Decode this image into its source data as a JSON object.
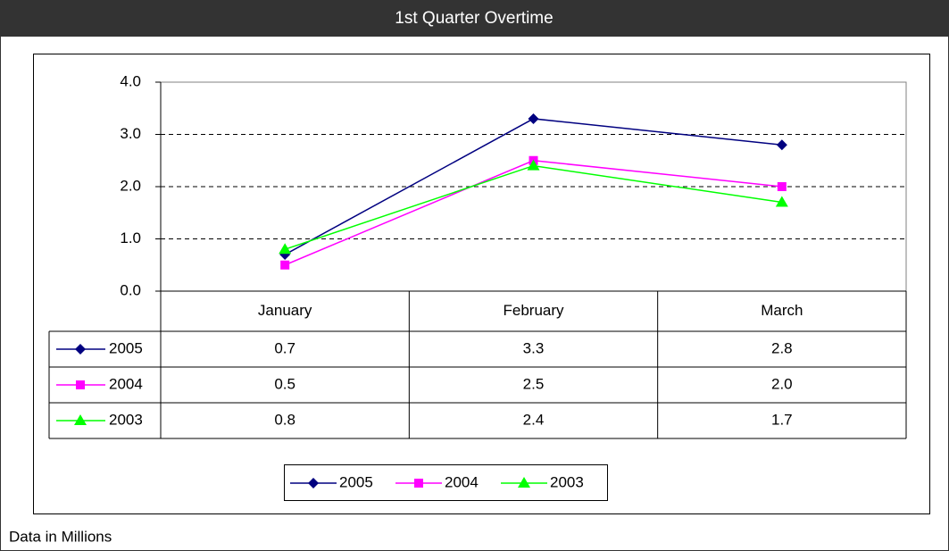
{
  "chart_data": {
    "type": "line",
    "title": "1st Quarter Overtime",
    "footnote": "Data in Millions",
    "categories": [
      "January",
      "February",
      "March"
    ],
    "series": [
      {
        "name": "2005",
        "color": "#000080",
        "marker": "diamond",
        "values": [
          0.7,
          3.3,
          2.8
        ],
        "value_labels": [
          "0.7",
          "3.3",
          "2.8"
        ]
      },
      {
        "name": "2004",
        "color": "#ff00ff",
        "marker": "square",
        "values": [
          0.5,
          2.5,
          2.0
        ],
        "value_labels": [
          "0.5",
          "2.5",
          "2.0"
        ]
      },
      {
        "name": "2003",
        "color": "#00ff00",
        "marker": "triangle",
        "values": [
          0.8,
          2.4,
          1.7
        ],
        "value_labels": [
          "0.8",
          "2.4",
          "1.7"
        ]
      }
    ],
    "ylim": [
      0,
      4
    ],
    "yticks": [
      {
        "value": 0,
        "label": "0.0"
      },
      {
        "value": 1,
        "label": "1.0"
      },
      {
        "value": 2,
        "label": "2.0"
      },
      {
        "value": 3,
        "label": "3.0"
      },
      {
        "value": 4,
        "label": "4.0"
      }
    ],
    "grid": true,
    "legend": "bottom",
    "data_table": true
  }
}
